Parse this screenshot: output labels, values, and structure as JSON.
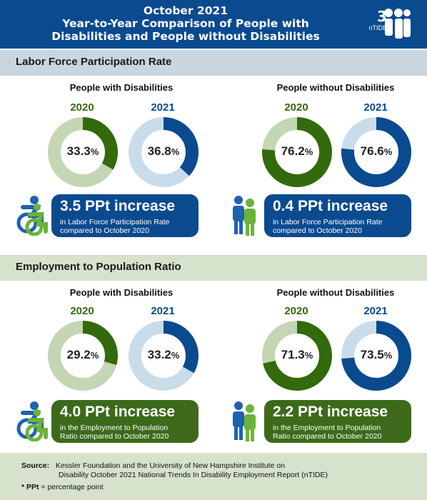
{
  "header": {
    "title_line1": "October 2021",
    "title_line2": "Year-to-Year Comparison of People with",
    "title_line3": "Disabilities and People without Disabilities",
    "logo_text": "nTIDE"
  },
  "sections": [
    {
      "title": "Labor Force Participation Rate",
      "groups": [
        {
          "label": "People with Disabilities",
          "callout_big": "3.5 PPt increase",
          "callout_sub_line1": "in Labor Force Participation Rate",
          "callout_sub_line2": "compared to October 2020"
        },
        {
          "label": "People without Disabilities",
          "callout_big": "0.4 PPt increase",
          "callout_sub_line1": "in Labor Force Participation Rate",
          "callout_sub_line2": "compared to October 2020"
        }
      ]
    },
    {
      "title": "Employment to Population Ratio",
      "groups": [
        {
          "label": "People with Disabilities",
          "callout_big": "4.0 PPt increase",
          "callout_sub_line1": "in the Employment to Population",
          "callout_sub_line2": "Ratio compared to October 2020"
        },
        {
          "label": "People without Disabilities",
          "callout_big": "2.2 PPt increase",
          "callout_sub_line1": "in the Employment to Population",
          "callout_sub_line2": "Ratio compared to October 2020"
        }
      ]
    }
  ],
  "years": [
    "2020",
    "2021"
  ],
  "colors": {
    "green_dark": "#336a0c",
    "green_light": "#c5d6b4",
    "blue_dark": "#0a4a8f",
    "blue_light": "#c9dce9",
    "header_blue": "#0a4a8f",
    "section1_bg": "#c9d6e0",
    "section2_bg": "#d6e2cc"
  },
  "chart_data": [
    {
      "type": "pie",
      "title": "Labor Force Participation Rate",
      "series": [
        {
          "name": "People with Disabilities",
          "categories": [
            "2020",
            "2021"
          ],
          "values": [
            33.3,
            36.8
          ]
        },
        {
          "name": "People without Disabilities",
          "categories": [
            "2020",
            "2021"
          ],
          "values": [
            76.2,
            76.6
          ]
        }
      ]
    },
    {
      "type": "pie",
      "title": "Employment to Population Ratio",
      "series": [
        {
          "name": "People with Disabilities",
          "categories": [
            "2020",
            "2021"
          ],
          "values": [
            29.2,
            33.2
          ]
        },
        {
          "name": "People without Disabilities",
          "categories": [
            "2020",
            "2021"
          ],
          "values": [
            71.3,
            73.5
          ]
        }
      ]
    }
  ],
  "source": {
    "label": "Source:",
    "line1": "Kessler Foundation and the University of New Hampshire Institute on",
    "line2": "Disability October 2021 National Trends In Disability Employment Report (nTIDE)",
    "ppt_label": "* PPt",
    "ppt_def": " = percentage point"
  }
}
